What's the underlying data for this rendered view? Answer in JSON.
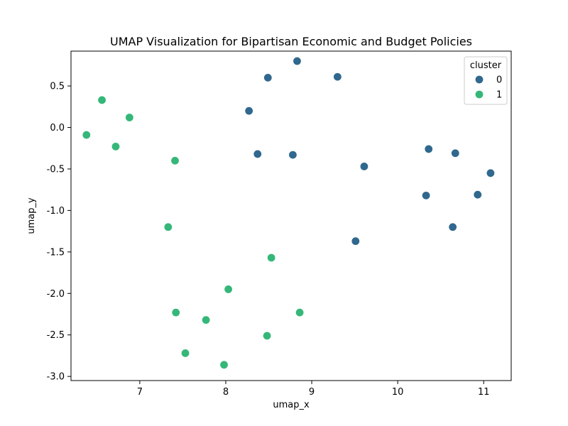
{
  "chart_data": {
    "type": "scatter",
    "title": "UMAP Visualization for Bipartisan Economic and Budget Policies",
    "xlabel": "umap_x",
    "ylabel": "umap_y",
    "xlim": [
      6.2,
      11.32
    ],
    "ylim": [
      -3.05,
      0.92
    ],
    "xticks": [
      7,
      8,
      9,
      10,
      11
    ],
    "yticks": [
      -3.0,
      -2.5,
      -2.0,
      -1.5,
      -1.0,
      -0.5,
      0.0,
      0.5
    ],
    "grid": false,
    "legend": {
      "title": "cluster",
      "placement": "top-right"
    },
    "series": [
      {
        "name": "0",
        "color": "#30688e",
        "points": [
          {
            "x": 8.83,
            "y": 0.8
          },
          {
            "x": 8.49,
            "y": 0.6
          },
          {
            "x": 9.3,
            "y": 0.61
          },
          {
            "x": 8.27,
            "y": 0.2
          },
          {
            "x": 8.37,
            "y": -0.32
          },
          {
            "x": 8.78,
            "y": -0.33
          },
          {
            "x": 9.61,
            "y": -0.47
          },
          {
            "x": 10.36,
            "y": -0.26
          },
          {
            "x": 10.67,
            "y": -0.31
          },
          {
            "x": 11.08,
            "y": -0.55
          },
          {
            "x": 10.33,
            "y": -0.82
          },
          {
            "x": 10.93,
            "y": -0.81
          },
          {
            "x": 10.64,
            "y": -1.2
          },
          {
            "x": 9.51,
            "y": -1.37
          }
        ]
      },
      {
        "name": "1",
        "color": "#35b779",
        "points": [
          {
            "x": 6.56,
            "y": 0.33
          },
          {
            "x": 6.88,
            "y": 0.12
          },
          {
            "x": 6.38,
            "y": -0.09
          },
          {
            "x": 6.72,
            "y": -0.23
          },
          {
            "x": 7.41,
            "y": -0.4
          },
          {
            "x": 7.33,
            "y": -1.2
          },
          {
            "x": 8.53,
            "y": -1.57
          },
          {
            "x": 8.03,
            "y": -1.95
          },
          {
            "x": 7.42,
            "y": -2.23
          },
          {
            "x": 8.86,
            "y": -2.23
          },
          {
            "x": 7.77,
            "y": -2.32
          },
          {
            "x": 8.48,
            "y": -2.51
          },
          {
            "x": 7.53,
            "y": -2.72
          },
          {
            "x": 7.98,
            "y": -2.86
          }
        ]
      }
    ]
  }
}
